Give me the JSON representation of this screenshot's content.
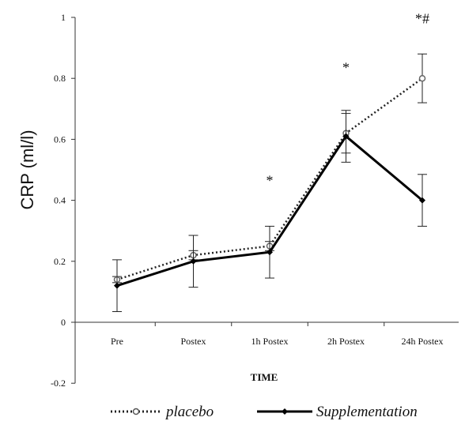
{
  "chart_data": {
    "type": "line",
    "title": "",
    "xlabel": "TIME",
    "ylabel": "CRP (ml/l)",
    "categories": [
      "Pre",
      "Postex",
      "1h Postex",
      "2h Postex",
      "24h Postex"
    ],
    "ylim": [
      -0.2,
      1
    ],
    "yticks": [
      1,
      0.8,
      0.6,
      0.4,
      0.2,
      0,
      -0.2
    ],
    "ytick_labels": [
      "1",
      "0.8",
      "0.6",
      "0.4",
      "0.2",
      "0",
      "-0.2"
    ],
    "grid": false,
    "legend_position": "bottom",
    "series": [
      {
        "name": "placebo",
        "style": "dotted",
        "marker": "open-circle",
        "color": "#222222",
        "values": [
          0.14,
          0.22,
          0.25,
          0.62,
          0.8
        ],
        "error": [
          0.01,
          0.015,
          0.015,
          0.065,
          0.08
        ]
      },
      {
        "name": "Supplementation",
        "style": "solid",
        "marker": "filled-diamond",
        "color": "#000000",
        "values": [
          0.12,
          0.2,
          0.23,
          0.61,
          0.4
        ],
        "error": [
          0.085,
          0.085,
          0.085,
          0.085,
          0.085
        ]
      }
    ],
    "annotations": [
      {
        "category": "1h Postex",
        "text": "*",
        "y": 0.45
      },
      {
        "category": "2h Postex",
        "text": "*",
        "y": 0.82
      },
      {
        "category": "24h Postex",
        "text": "*#",
        "y": 0.98
      }
    ]
  }
}
